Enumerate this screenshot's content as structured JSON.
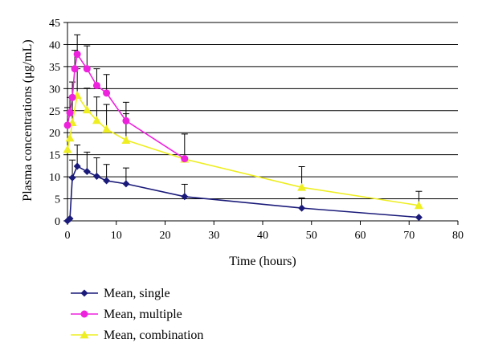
{
  "chart_data": {
    "type": "line",
    "title": "",
    "xlabel": "Time (hours)",
    "ylabel": "Plasma concentrations (μg/mL)",
    "xlim": [
      0,
      80
    ],
    "ylim": [
      0,
      45
    ],
    "xticks": [
      0,
      10,
      20,
      30,
      40,
      50,
      60,
      70,
      80
    ],
    "yticks": [
      0,
      5,
      10,
      15,
      20,
      25,
      30,
      35,
      40,
      45
    ],
    "grid": "horizontal",
    "legend_position": "bottom-left",
    "series": [
      {
        "name": "Mean, single",
        "color": "#1a1a7a",
        "marker": "diamond",
        "points": [
          {
            "x": 0,
            "y": 0,
            "err": 0
          },
          {
            "x": 0.5,
            "y": 0.5,
            "err": 0
          },
          {
            "x": 1,
            "y": 9.8,
            "err": 4
          },
          {
            "x": 2,
            "y": 12.4,
            "err": 4.8
          },
          {
            "x": 4,
            "y": 11.2,
            "err": 4.4
          },
          {
            "x": 6,
            "y": 10.1,
            "err": 4.2
          },
          {
            "x": 8,
            "y": 9.1,
            "err": 3.7
          },
          {
            "x": 12,
            "y": 8.4,
            "err": 3.6
          },
          {
            "x": 24,
            "y": 5.5,
            "err": 2.8
          },
          {
            "x": 48,
            "y": 2.9,
            "err": 2.3
          },
          {
            "x": 72,
            "y": 0.8,
            "err": 0
          }
        ]
      },
      {
        "name": "Mean, multiple",
        "color": "#ee22dd",
        "marker": "circle",
        "points": [
          {
            "x": 0,
            "y": 21.7,
            "err": 4
          },
          {
            "x": 0.5,
            "y": 24.5,
            "err": 3.5
          },
          {
            "x": 1,
            "y": 28,
            "err": 3.5
          },
          {
            "x": 1.5,
            "y": 34.5,
            "err": 4.2
          },
          {
            "x": 2,
            "y": 37.8,
            "err": 4.4
          },
          {
            "x": 4,
            "y": 34.5,
            "err": 5.2
          },
          {
            "x": 6,
            "y": 30.7,
            "err": 3.8
          },
          {
            "x": 8,
            "y": 29,
            "err": 4.2
          },
          {
            "x": 12,
            "y": 22.7,
            "err": 4.2
          },
          {
            "x": 24,
            "y": 14.1,
            "err": 0
          }
        ]
      },
      {
        "name": "Mean, combination",
        "color": "#eeee22",
        "marker": "triangle",
        "points": [
          {
            "x": 0,
            "y": 16.2,
            "err": 0
          },
          {
            "x": 0.5,
            "y": 18.8,
            "err": 0
          },
          {
            "x": 1,
            "y": 22.3,
            "err": 5.6
          },
          {
            "x": 2,
            "y": 28.5,
            "err": 6
          },
          {
            "x": 4,
            "y": 25.2,
            "err": 4.9
          },
          {
            "x": 6,
            "y": 22.8,
            "err": 5.3
          },
          {
            "x": 8,
            "y": 20.8,
            "err": 5.6
          },
          {
            "x": 12,
            "y": 18.3,
            "err": 6
          },
          {
            "x": 24,
            "y": 14,
            "err": 5.7
          },
          {
            "x": 48,
            "y": 7.6,
            "err": 4.7
          },
          {
            "x": 72,
            "y": 3.5,
            "err": 3.2
          }
        ]
      }
    ]
  }
}
